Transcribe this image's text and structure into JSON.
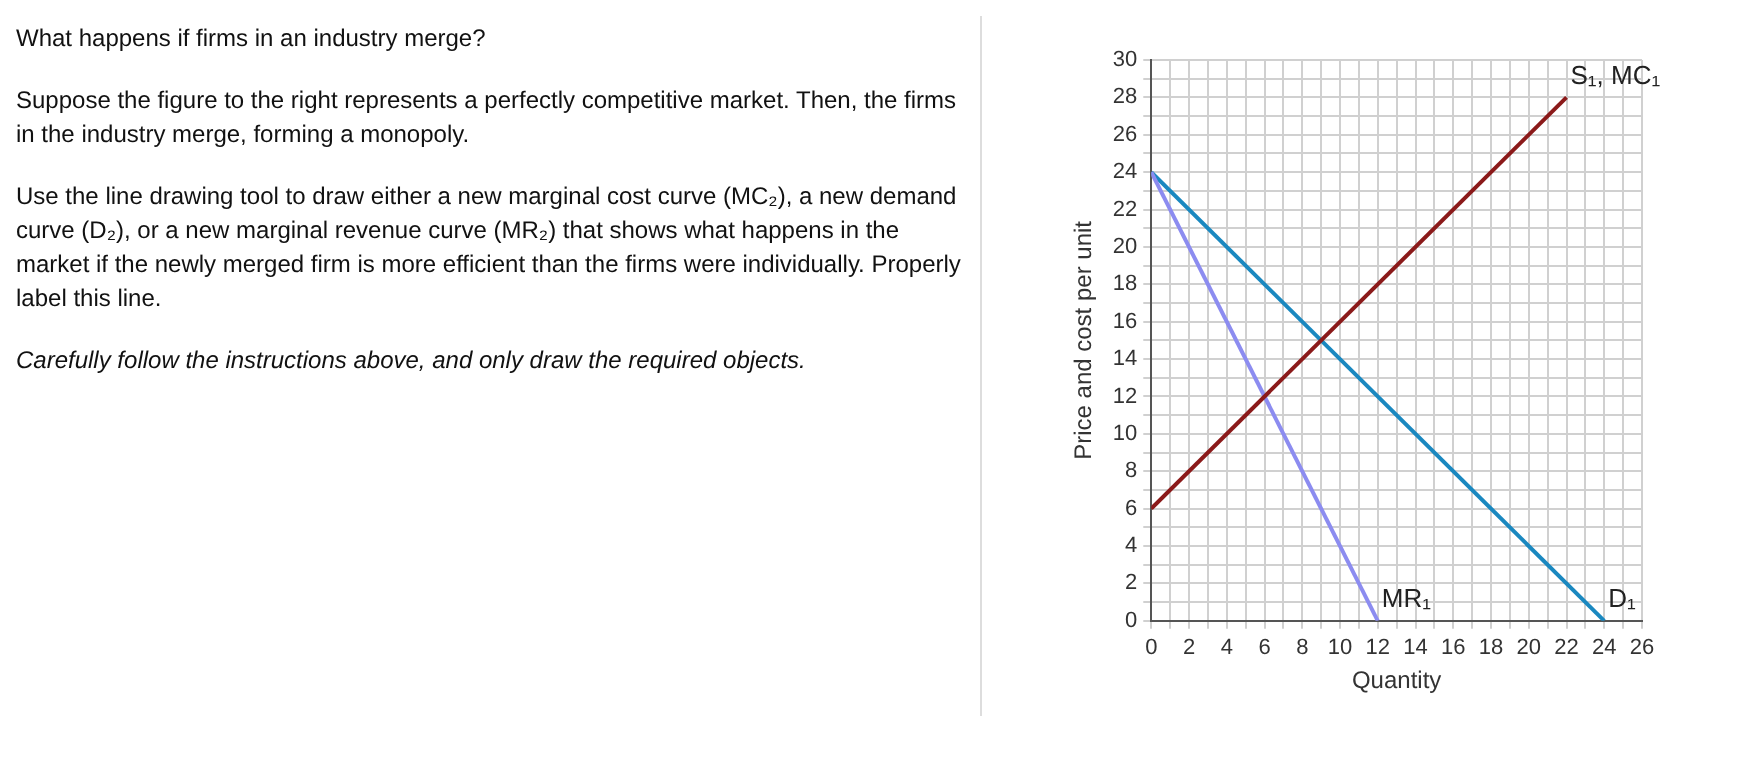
{
  "chart_data": {
    "type": "line",
    "title": "What happens if firms in an industry merge?",
    "annotations": [
      "Suppose the figure to the right represents a perfectly competitive market. Then, the firms in the industry merge, forming a monopoly.",
      "Use the line drawing tool to draw either a new marginal cost curve (MC₂), a new demand curve (D₂), or a new marginal revenue curve (MR₂) that shows what happens in the market if the newly merged firm is more efficient than the firms were individually. Properly label this line.",
      "Carefully follow the instructions above, and only draw the required objects."
    ],
    "xlabel": "Quantity",
    "ylabel": "Price and cost per unit",
    "series": [
      {
        "name": "S₁, MC₁",
        "color": "#8b1a1a",
        "x": [
          0,
          22
        ],
        "values": [
          6,
          28
        ]
      },
      {
        "name": "MR₁",
        "color": "#8c8cf0",
        "x": [
          0,
          12
        ],
        "values": [
          24,
          0
        ]
      },
      {
        "name": "D₁",
        "color": "#1a88c0",
        "x": [
          0,
          24
        ],
        "values": [
          24,
          0
        ]
      }
    ],
    "xlim": [
      0,
      26
    ],
    "ylim": [
      0,
      30
    ],
    "xticks": [
      0,
      {
        "value": 1,
        "label": null
      },
      2,
      {
        "value": 3,
        "label": null
      },
      4,
      {
        "value": 5,
        "label": null
      },
      6,
      {
        "value": 7,
        "label": null
      },
      8,
      {
        "value": 9,
        "label": null
      },
      10,
      {
        "value": 11,
        "label": null
      },
      12,
      {
        "value": 13,
        "label": null
      },
      14,
      {
        "value": 15,
        "label": null
      },
      16,
      {
        "value": 17,
        "label": null
      },
      18,
      {
        "value": 19,
        "label": null
      },
      20,
      {
        "value": 21,
        "label": null
      },
      22,
      {
        "value": 23,
        "label": null
      },
      24,
      {
        "value": 25,
        "label": null
      },
      26
    ],
    "yticks": [
      0,
      {
        "value": 1,
        "label": null
      },
      2,
      {
        "value": 3,
        "label": null
      },
      4,
      {
        "value": 5,
        "label": null
      },
      6,
      {
        "value": 7,
        "label": null
      },
      8,
      {
        "value": 9,
        "label": null
      },
      10,
      {
        "value": 11,
        "label": null
      },
      12,
      {
        "value": 13,
        "label": null
      },
      14,
      {
        "value": 15,
        "label": null
      },
      16,
      {
        "value": 17,
        "label": null
      },
      18,
      {
        "value": 19,
        "label": null
      },
      20,
      {
        "value": 21,
        "label": null
      },
      22,
      {
        "value": 23,
        "label": null
      },
      24,
      {
        "value": 25,
        "label": null
      },
      26,
      {
        "value": 27,
        "label": null
      },
      28,
      {
        "value": 29,
        "label": null
      },
      30
    ],
    "grid": true,
    "legend": false,
    "marker": "none",
    "line_style": "solid"
  }
}
